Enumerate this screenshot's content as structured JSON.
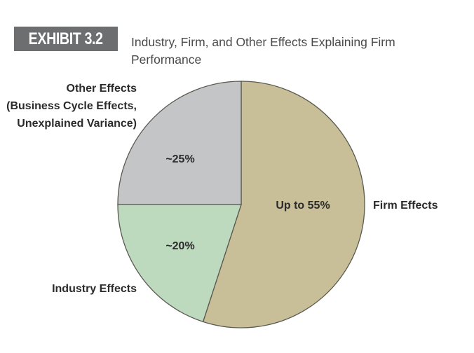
{
  "header": {
    "exhibit": "EXHIBIT 3.2",
    "title": "Industry, Firm, and Other Effects Explaining Firm Performance"
  },
  "chart_data": {
    "type": "pie",
    "title": "Industry, Firm, and Other Effects Explaining Firm Performance",
    "start_angle": "12 o'clock, clockwise",
    "slices": [
      {
        "name": "Firm Effects",
        "value": 55,
        "value_label": "Up to 55%",
        "color": "#c8be98"
      },
      {
        "name": "Industry Effects",
        "value": 20,
        "value_label": "~20%",
        "color": "#bdd9be"
      },
      {
        "name": "Other Effects (Business Cycle Effects, Unexplained Variance)",
        "value": 25,
        "value_label": "~25%",
        "color": "#c4c5c7",
        "label_lines": [
          "Other Effects",
          "(Business Cycle Effects,",
          "Unexplained Variance)"
        ]
      }
    ],
    "stroke_color": "#5a5a50"
  }
}
